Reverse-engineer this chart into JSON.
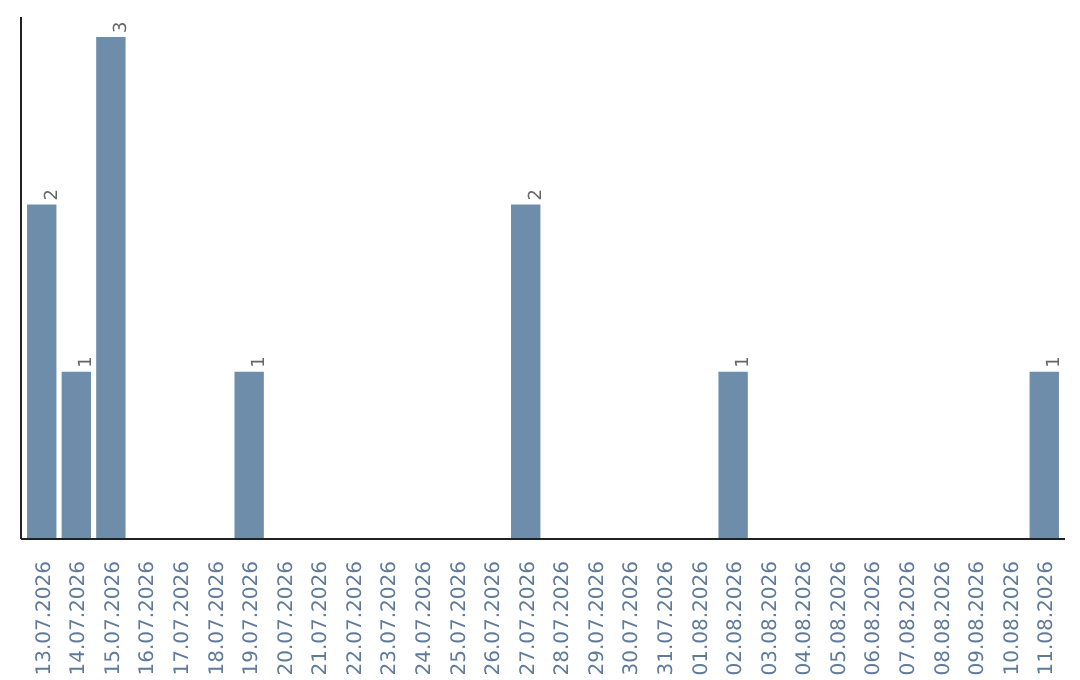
{
  "chart_data": {
    "type": "bar",
    "categories": [
      "13.07.2026",
      "14.07.2026",
      "15.07.2026",
      "16.07.2026",
      "17.07.2026",
      "18.07.2026",
      "19.07.2026",
      "20.07.2026",
      "21.07.2026",
      "22.07.2026",
      "23.07.2026",
      "24.07.2026",
      "25.07.2026",
      "26.07.2026",
      "27.07.2026",
      "28.07.2026",
      "29.07.2026",
      "30.07.2026",
      "31.07.2026",
      "01.08.2026",
      "02.08.2026",
      "03.08.2026",
      "04.08.2026",
      "05.08.2026",
      "06.08.2026",
      "07.08.2026",
      "08.08.2026",
      "09.08.2026",
      "10.08.2026",
      "11.08.2026"
    ],
    "values": [
      2,
      1,
      3,
      0,
      0,
      0,
      1,
      0,
      0,
      0,
      0,
      0,
      0,
      0,
      2,
      0,
      0,
      0,
      0,
      0,
      1,
      0,
      0,
      0,
      0,
      0,
      0,
      0,
      0,
      1
    ],
    "value_labels": [
      "2",
      "1",
      "3",
      null,
      null,
      null,
      "1",
      null,
      null,
      null,
      null,
      null,
      null,
      null,
      "2",
      null,
      null,
      null,
      null,
      null,
      "1",
      null,
      null,
      null,
      null,
      null,
      null,
      null,
      null,
      "1"
    ],
    "color": "#6d8dab",
    "grid": false
  }
}
